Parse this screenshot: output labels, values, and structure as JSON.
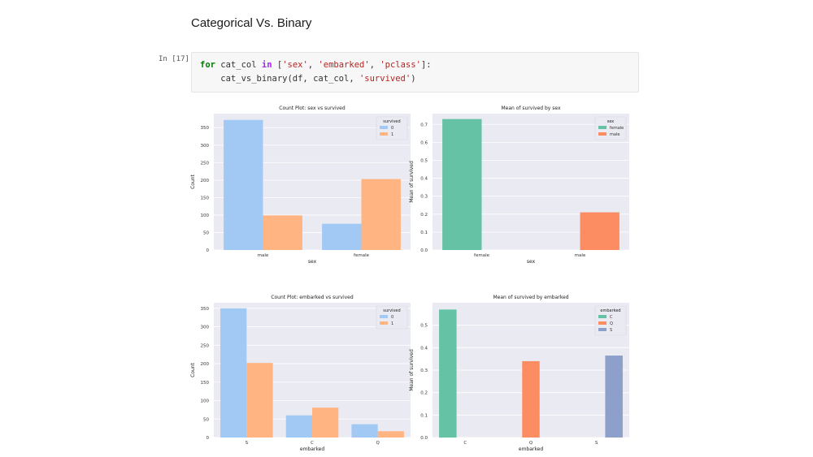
{
  "notebook": {
    "heading": "Categorical Vs. Binary",
    "prompt": "In [17]:",
    "code": {
      "line1": {
        "kw_for": "for",
        "var": " cat_col ",
        "kw_in": "in",
        "p1": " [",
        "s1": "'sex'",
        "c1": ", ",
        "s2": "'embarked'",
        "c2": ", ",
        "s3": "'pclass'",
        "p2": "]:"
      },
      "line2": {
        "indent": "    cat_vs_binary(df, cat_col, ",
        "s": "'survived'",
        "end": ")"
      }
    }
  },
  "colors": {
    "survived_0": "#a1c9f4",
    "survived_1": "#ffb482",
    "set2_0": "#66c2a5",
    "set2_1": "#fc8d62",
    "set2_2": "#8da0cb",
    "plot_bg": "#eaeaf2",
    "grid": "#ffffff"
  },
  "chart_data": [
    {
      "type": "bar",
      "title": "Count Plot: sex vs survived",
      "xlabel": "sex",
      "ylabel": "Count",
      "categories": [
        "male",
        "female"
      ],
      "legend_title": "survived",
      "legend_position": "top-right",
      "series": [
        {
          "name": "0",
          "values": [
            372,
            75
          ]
        },
        {
          "name": "1",
          "values": [
            99,
            203
          ]
        }
      ],
      "ylim": [
        0,
        390
      ],
      "yticks": [
        0,
        50,
        100,
        150,
        200,
        250,
        300,
        350
      ],
      "grid": true
    },
    {
      "type": "bar",
      "title": "Mean of survived by sex",
      "xlabel": "sex",
      "ylabel": "Mean of survived",
      "categories": [
        "female",
        "male"
      ],
      "legend_title": "sex",
      "legend_position": "top-right",
      "series": [
        {
          "name": "female",
          "values": [
            0.73,
            null
          ]
        },
        {
          "name": "male",
          "values": [
            null,
            0.21
          ]
        }
      ],
      "ylim": [
        0,
        0.76
      ],
      "yticks": [
        0.0,
        0.1,
        0.2,
        0.3,
        0.4,
        0.5,
        0.6,
        0.7
      ],
      "grid": true
    },
    {
      "type": "bar",
      "title": "Count Plot: embarked vs survived",
      "xlabel": "embarked",
      "ylabel": "Count",
      "categories": [
        "S",
        "C",
        "Q"
      ],
      "legend_title": "survived",
      "legend_position": "top-right",
      "series": [
        {
          "name": "0",
          "values": [
            350,
            60,
            36
          ]
        },
        {
          "name": "1",
          "values": [
            202,
            81,
            17
          ]
        }
      ],
      "ylim": [
        0,
        365
      ],
      "yticks": [
        0,
        50,
        100,
        150,
        200,
        250,
        300,
        350
      ],
      "grid": true
    },
    {
      "type": "bar",
      "title": "Mean of survived by embarked",
      "xlabel": "embarked",
      "ylabel": "Mean of survived",
      "categories": [
        "C",
        "Q",
        "S"
      ],
      "legend_title": "embarked",
      "legend_position": "top-right",
      "series": [
        {
          "name": "C",
          "values": [
            0.57,
            null,
            null
          ]
        },
        {
          "name": "Q",
          "values": [
            null,
            0.34,
            null
          ]
        },
        {
          "name": "S",
          "values": [
            null,
            null,
            0.365
          ]
        }
      ],
      "ylim": [
        0,
        0.6
      ],
      "yticks": [
        0.0,
        0.1,
        0.2,
        0.3,
        0.4,
        0.5
      ],
      "grid": true
    }
  ]
}
